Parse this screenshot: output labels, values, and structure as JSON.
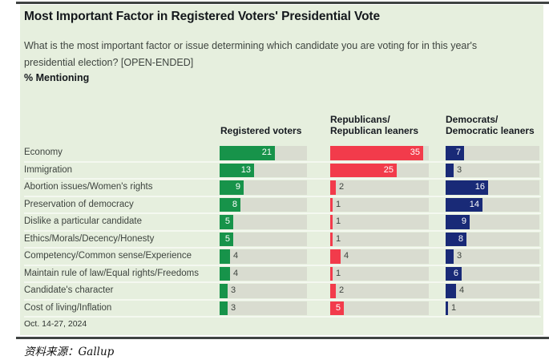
{
  "title": "Most Important Factor in Registered Voters' Presidential Vote",
  "subtitle": "What is the most important factor or issue determining which candidate you are voting for in this year's presidential election? [OPEN-ENDED]",
  "metric_label": "% Mentioning",
  "date_note": "Oct. 14-27, 2024",
  "source": "资料来源：Gallup",
  "header": {
    "registered": "Registered voters",
    "republicans": "Republicans/\nRepublican leaners",
    "democrats": "Democrats/\nDemocratic leaners"
  },
  "colors": {
    "green": "#17934a",
    "red": "#f23b4b",
    "navy": "#192a77",
    "panel_bg": "#e6efde",
    "track": "#d9dcd0",
    "rule": "#3f4342"
  },
  "chart_data": {
    "type": "bar",
    "orientation": "horizontal",
    "unit": "%",
    "title": "Most Important Factor in Registered Voters' Presidential Vote",
    "categories": [
      "Economy",
      "Immigration",
      "Abortion issues/Women's rights",
      "Preservation of democracy",
      "Dislike a particular candidate",
      "Ethics/Morals/Decency/Honesty",
      "Competency/Common sense/Experience",
      "Maintain rule of law/Equal rights/Freedoms",
      "Candidate's character",
      "Cost of living/Inflation"
    ],
    "series": [
      {
        "name": "Registered voters",
        "values": [
          21,
          13,
          9,
          8,
          5,
          5,
          4,
          4,
          3,
          3
        ]
      },
      {
        "name": "Republicans/Republican leaners",
        "values": [
          35,
          25,
          2,
          1,
          1,
          1,
          4,
          1,
          2,
          5
        ]
      },
      {
        "name": "Democrats/Democratic leaners",
        "values": [
          7,
          3,
          16,
          14,
          9,
          8,
          3,
          6,
          4,
          1
        ]
      }
    ],
    "value_labels": "shown on bars; inside bar when value >= 5, outside otherwise",
    "axis": "no visible axis; bars scaled ~3.3px per percentage point",
    "legend_position": "column headers above each bar group"
  }
}
